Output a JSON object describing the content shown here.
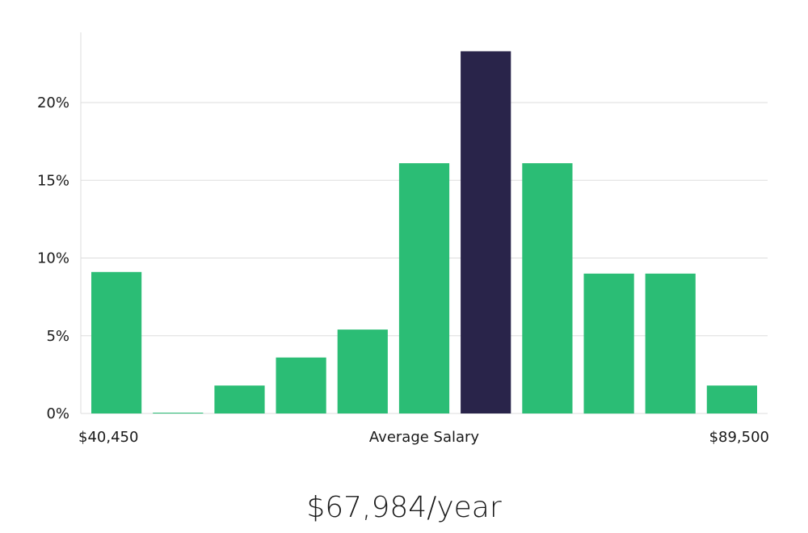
{
  "chart_data": {
    "type": "bar",
    "title": "",
    "ylabel": "",
    "xlabel": "Average Salary",
    "x_min_label": "$40,450",
    "x_max_label": "$89,500",
    "ylim": [
      0,
      24
    ],
    "yticks": [
      0,
      5,
      10,
      15,
      20
    ],
    "ytick_labels": [
      "0%",
      "5%",
      "10%",
      "15%",
      "20%"
    ],
    "grid": true,
    "bins": 11,
    "values": [
      9.1,
      0.05,
      1.8,
      3.6,
      5.4,
      16.1,
      23.3,
      16.1,
      9.0,
      9.0,
      1.8
    ],
    "highlight_index": 6,
    "colors": {
      "bar": "#2bbd75",
      "highlight": "#29244a"
    }
  },
  "summary": {
    "text": "$67,984/year"
  }
}
